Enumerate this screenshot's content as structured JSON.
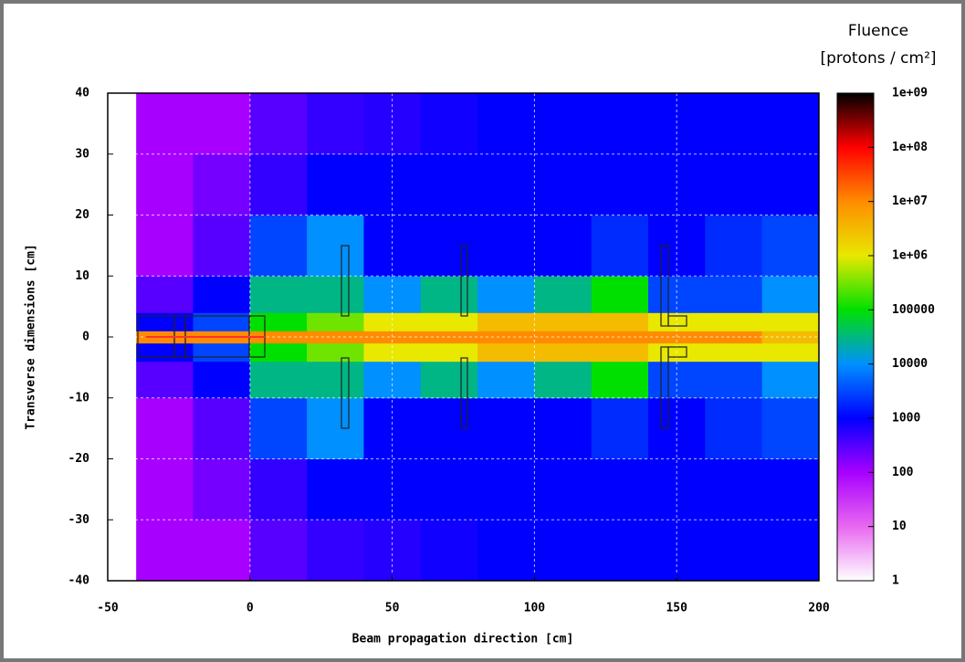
{
  "chart_data": {
    "type": "heatmap",
    "title": "Fluence",
    "subtitle": "[protons / cm²]",
    "x_label": "Beam propagation direction [cm]",
    "y_label": "Transverse dimensions [cm]",
    "xlim": [
      -50,
      200
    ],
    "xticks": [
      -50,
      0,
      50,
      100,
      150,
      200
    ],
    "ylim": [
      -40,
      40
    ],
    "yticks": [
      -40,
      -30,
      -20,
      -10,
      0,
      10,
      20,
      30,
      40
    ],
    "grid": true,
    "xbins": [
      -40,
      -20,
      0,
      20,
      40,
      60,
      80,
      100,
      120,
      140,
      160,
      180,
      200
    ],
    "ybins": [
      -40,
      -30,
      -20,
      -10,
      -4,
      -1,
      1,
      4,
      10,
      20,
      30,
      40
    ],
    "z": [
      [
        100,
        100,
        300,
        500,
        600,
        800,
        1000,
        1000,
        1000,
        1000,
        1000,
        1000
      ],
      [
        100,
        200,
        500,
        1000,
        1000,
        1000,
        1000,
        1000,
        1000,
        1000,
        1000,
        1000
      ],
      [
        100,
        300,
        3000,
        10000,
        1000,
        1000,
        1000,
        1000,
        2000,
        1000,
        2000,
        3000
      ],
      [
        300,
        1000,
        30000,
        30000,
        10000,
        30000,
        10000,
        30000,
        100000,
        3000,
        3000,
        10000
      ],
      [
        1000,
        3000,
        100000,
        300000,
        1000000,
        1000000,
        3000000,
        3000000,
        3000000,
        1000000,
        1000000,
        1000000
      ],
      [
        10000000,
        10000000,
        10000000,
        10000000,
        10000000,
        10000000,
        10000000,
        10000000,
        10000000,
        10000000,
        10000000,
        3000000
      ],
      [
        1000,
        3000,
        100000,
        300000,
        1000000,
        1000000,
        3000000,
        3000000,
        3000000,
        1000000,
        1000000,
        1000000
      ],
      [
        300,
        1000,
        30000,
        30000,
        10000,
        30000,
        10000,
        30000,
        100000,
        3000,
        3000,
        10000
      ],
      [
        100,
        300,
        3000,
        10000,
        1000,
        1000,
        1000,
        1000,
        2000,
        1000,
        2000,
        3000
      ],
      [
        100,
        200,
        500,
        1000,
        1000,
        1000,
        1000,
        1000,
        1000,
        1000,
        1000,
        1000
      ],
      [
        100,
        100,
        300,
        500,
        600,
        800,
        1000,
        1000,
        1000,
        1000,
        1000,
        1000
      ]
    ],
    "log_scale": true,
    "zlim": [
      1,
      1000000000
    ],
    "zticks": [
      {
        "value": 1000000000,
        "label": "1e+09"
      },
      {
        "value": 100000000,
        "label": "1e+08"
      },
      {
        "value": 10000000,
        "label": "1e+07"
      },
      {
        "value": 1000000,
        "label": "1e+06"
      },
      100000,
      10000,
      1000,
      100,
      10,
      1
    ],
    "colormap": [
      "#ffffff",
      "#e868f0",
      "#a800ff",
      "#0000ff",
      "#0090ff",
      "#00e000",
      "#e8e800",
      "#ff8c00",
      "#ff0000",
      "#000000"
    ]
  }
}
